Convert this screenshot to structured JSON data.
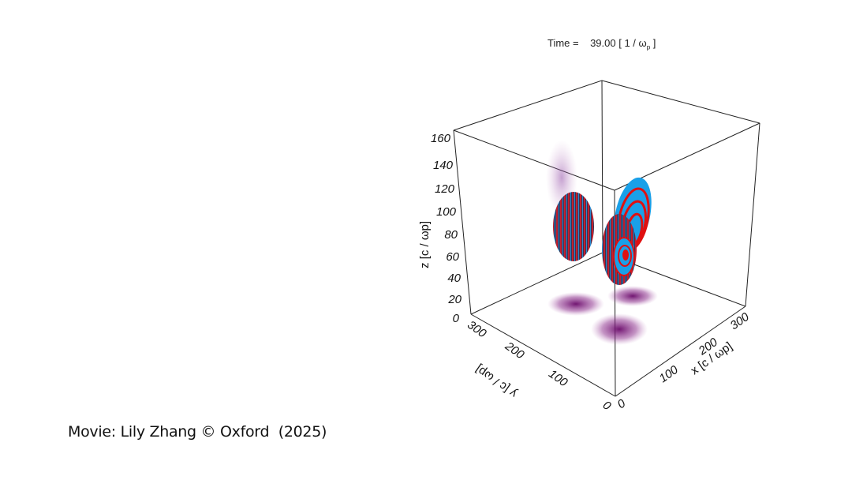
{
  "header": {
    "time_label": "Time =",
    "time_value": "39.00",
    "time_unit_open": "[ 1 / ω",
    "time_unit_sub": "p",
    "time_unit_close": " ]"
  },
  "axes": {
    "z": {
      "label": "z [c / ωp]",
      "ticks": [
        "0",
        "20",
        "40",
        "60",
        "80",
        "100",
        "120",
        "140",
        "160"
      ]
    },
    "y": {
      "label": "y [c / ωp]",
      "ticks": [
        "0",
        "100",
        "200",
        "300"
      ]
    },
    "x": {
      "label": "x [c / ωp]",
      "ticks": [
        "0",
        "100",
        "200",
        "300"
      ]
    }
  },
  "colors": {
    "red": "#e01010",
    "blue": "#1aa0e8",
    "dark": "#3a3050",
    "projection": "#6a0a6a"
  },
  "credit": "Movie: Lily Zhang © Oxford  (2025)"
}
